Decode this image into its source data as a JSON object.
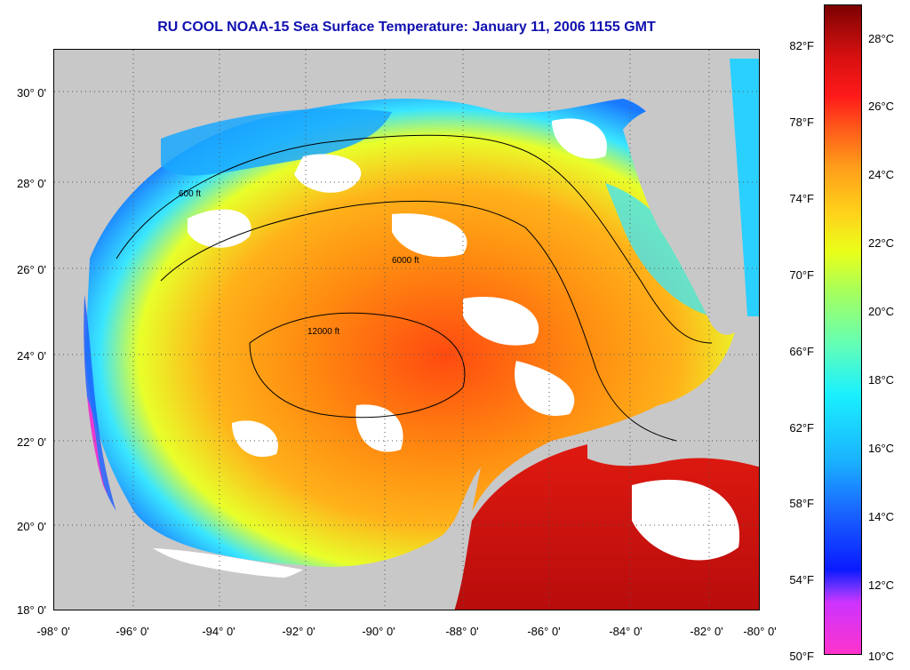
{
  "title": "RU COOL  NOAA-15  Sea Surface Temperature:  January 11, 2006 1155 GMT",
  "latitude_labels": [
    "30° 0'",
    "28° 0'",
    "26° 0'",
    "24° 0'",
    "22° 0'",
    "20° 0'",
    "18° 0'"
  ],
  "longitude_labels": [
    "-98° 0'",
    "-96° 0'",
    "-94° 0'",
    "-92° 0'",
    "-90° 0'",
    "-88° 0'",
    "-86° 0'",
    "-84° 0'",
    "-82° 0'",
    "-80° 0'"
  ],
  "colorbar": {
    "fahrenheit_labels": [
      "82°F",
      "78°F",
      "74°F",
      "70°F",
      "66°F",
      "62°F",
      "58°F",
      "54°F",
      "50°F"
    ],
    "celsius_labels": [
      "28°C",
      "26°C",
      "24°C",
      "22°C",
      "20°C",
      "18°C",
      "16°C",
      "14°C",
      "12°C",
      "10°C"
    ]
  },
  "contour_labels": [
    "600 ft",
    "6000 ft",
    "12000 ft"
  ],
  "colors": {
    "title": "#1010b0",
    "land": "#c8c8c8",
    "cloud": "#ffffff"
  }
}
